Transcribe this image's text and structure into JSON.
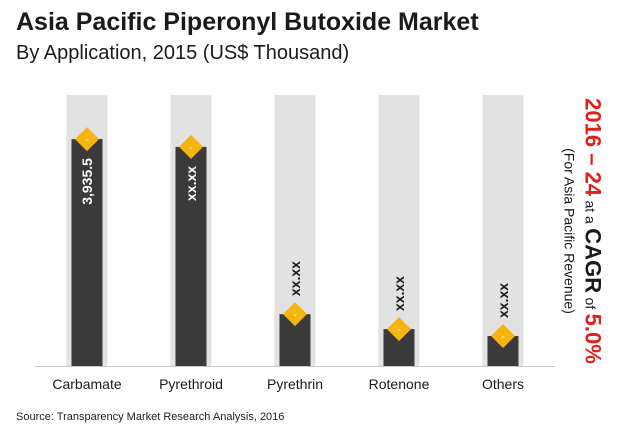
{
  "header": {
    "title": "Asia Pacific Piperonyl Butoxide Market",
    "subtitle": "By Application, 2015 (US$ Thousand)"
  },
  "cagr": {
    "years": "2016 – 24",
    "at_a": "at a",
    "cagr_word": "CAGR",
    "of": "of",
    "rate": "5.0%",
    "note": "(For Asia Pacific Revenue)"
  },
  "source": "Source: Transparency Market Research Analysis, 2016",
  "colors": {
    "bar": "#3a3a3a",
    "track": "#e2e2e2",
    "marker": "#f5b50e",
    "accent": "#e0201a"
  },
  "chart_data": {
    "type": "bar",
    "categories": [
      "Carbamate",
      "Pyrethroid",
      "Pyrethrin",
      "Rotenone",
      "Others"
    ],
    "values": [
      3935.5,
      3800,
      900,
      640,
      520
    ],
    "value_labels": [
      "3,935.5",
      "xx.xx",
      "xx.xx",
      "xx.xx",
      "xx.xx"
    ],
    "ylim": [
      0,
      4700
    ],
    "marker_symbol": "-",
    "grid": false
  }
}
